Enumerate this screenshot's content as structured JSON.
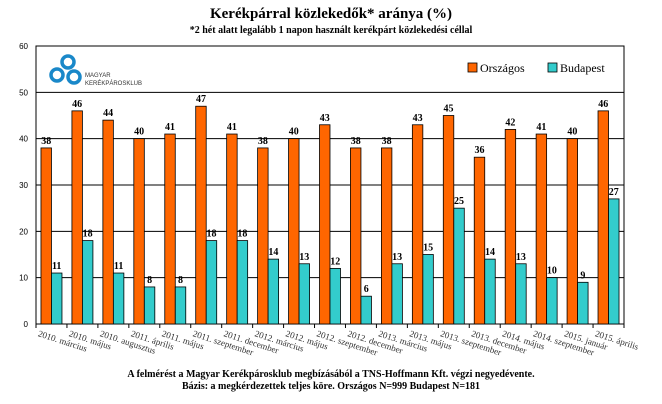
{
  "chart_data": {
    "type": "bar",
    "title": "Kerékpárral közlekedők* aránya (%)",
    "subtitle": "*2 hét alatt legalább 1 napon használt kerékpárt közlekedési céllal",
    "footnote1": "A felmérést a Magyar Kerékpárosklub megbízásából a TNS-Hoffmann Kft. végzi negyedévente.",
    "footnote2": "Bázis: a megkérdezettek teljes köre. Országos N=999 Budapest N=181",
    "logo_text": "MAGYAR KERÉKPÁROSKLUB",
    "ylim": [
      0,
      60
    ],
    "yticks": [
      0,
      10,
      20,
      30,
      40,
      50,
      60
    ],
    "grid": true,
    "legend_position": "top-right",
    "categories": [
      "2010. március",
      "2010. május",
      "2010. augusztus",
      "2011. április",
      "2011. május",
      "2011. szeptember",
      "2011. december",
      "2012. március",
      "2012. május",
      "2012. szeptember",
      "2012. december",
      "2013. március",
      "2013. május",
      "2013. szeptember",
      "2013. december",
      "2014. május",
      "2014. szeptember",
      "2015. január",
      "2015. április"
    ],
    "series": [
      {
        "name": "Országos",
        "color": "#FF6600",
        "values": [
          38,
          46,
          44,
          40,
          41,
          47,
          41,
          38,
          40,
          43,
          38,
          38,
          43,
          45,
          36,
          42,
          41,
          40,
          46
        ]
      },
      {
        "name": "Budapest",
        "color": "#33CCCC",
        "values": [
          11,
          18,
          11,
          8,
          8,
          18,
          18,
          14,
          13,
          12,
          6,
          13,
          15,
          25,
          14,
          13,
          10,
          9,
          27
        ]
      }
    ]
  }
}
